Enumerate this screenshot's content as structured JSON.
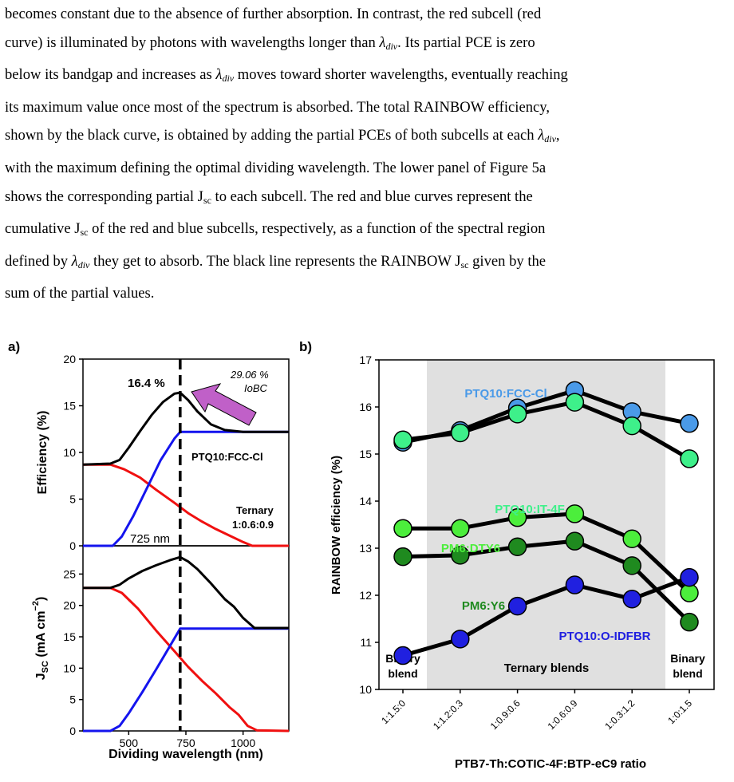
{
  "text": {
    "l1": "becomes constant due to the absence of further absorption. In contrast, the red subcell (red",
    "l2a": "curve) is illuminated by photons with wavelengths longer than ",
    "l2b": ". Its partial PCE is zero",
    "l3a": "below its bandgap and increases as ",
    "l3b": " moves toward shorter wavelengths, eventually reaching",
    "l4": "its maximum value once most of the spectrum is absorbed. The total RAINBOW efficiency,",
    "l5a": "shown by the black curve, is obtained by adding the partial PCEs of both subcells at each ",
    "l5b": ",",
    "l6": "with the maximum defining the optimal dividing wavelength. The lower panel of Figure 5a",
    "l7a": "shows the corresponding partial J",
    "l7b": " to each subcell. The red and blue curves represent the",
    "l8a": "cumulative J",
    "l8b": " of the red and blue subcells, respectively, as a function of the spectral region",
    "l9a": "defined by ",
    "l9b": " they get to absorb. The black line represents the RAINBOW J",
    "l9c": " given by the",
    "l10": "sum of the partial values.",
    "lam": "λ",
    "div_sub": "div",
    "sc_sub": "sc"
  },
  "figure_a": {
    "panel_label": "a)",
    "top": {
      "ylabel": "Efficiency (%)",
      "yticks": [
        "0",
        "5",
        "10",
        "15",
        "20"
      ],
      "ylim": [
        0,
        20
      ],
      "peak_label": "16.4 %",
      "iobc_line1": "29.06 %",
      "iobc_line2": "IoBC",
      "material_label": "PTQ10:FCC-Cl",
      "ternary_line1": "Ternary",
      "ternary_line2": "1:0.6:0.9",
      "divider_label": "725 nm",
      "divider_x": 725,
      "black": [
        [
          300,
          8.7
        ],
        [
          420,
          8.8
        ],
        [
          460,
          9.2
        ],
        [
          500,
          10.5
        ],
        [
          550,
          12.3
        ],
        [
          600,
          14
        ],
        [
          650,
          15.4
        ],
        [
          700,
          16.3
        ],
        [
          725,
          16.4
        ],
        [
          760,
          15.6
        ],
        [
          800,
          14.4
        ],
        [
          860,
          13
        ],
        [
          920,
          12.4
        ],
        [
          1000,
          12.2
        ],
        [
          1200,
          12.2
        ]
      ],
      "red": [
        [
          300,
          8.7
        ],
        [
          420,
          8.7
        ],
        [
          480,
          8.2
        ],
        [
          550,
          7.3
        ],
        [
          620,
          6
        ],
        [
          700,
          4.6
        ],
        [
          760,
          3.5
        ],
        [
          820,
          2.6
        ],
        [
          880,
          1.8
        ],
        [
          940,
          1.1
        ],
        [
          1000,
          0.4
        ],
        [
          1040,
          0
        ],
        [
          1200,
          0
        ]
      ],
      "blue": [
        [
          300,
          0
        ],
        [
          430,
          0
        ],
        [
          470,
          1
        ],
        [
          520,
          3.2
        ],
        [
          580,
          6.2
        ],
        [
          640,
          9.2
        ],
        [
          700,
          11.5
        ],
        [
          725,
          12.2
        ],
        [
          1200,
          12.2
        ]
      ]
    },
    "bottom": {
      "ylabel": "J",
      "ylabel_sub": "SC",
      "ylabel_unit": " (mA cm",
      "ylabel_exp": "−2",
      "ylabel_close": ")",
      "yticks": [
        "0",
        "5",
        "10",
        "15",
        "20",
        "25"
      ],
      "ylim": [
        0,
        29.5
      ],
      "xticks": [
        "500",
        "750",
        "1000"
      ],
      "xtick_values": [
        500,
        750,
        1000
      ],
      "xlim": [
        300,
        1200
      ],
      "xlabel": "Dividing wavelength (nm)",
      "black": [
        [
          300,
          22.8
        ],
        [
          420,
          22.8
        ],
        [
          460,
          23.3
        ],
        [
          500,
          24.3
        ],
        [
          560,
          25.5
        ],
        [
          620,
          26.4
        ],
        [
          680,
          27.2
        ],
        [
          725,
          27.7
        ],
        [
          760,
          27
        ],
        [
          800,
          25.8
        ],
        [
          860,
          23.5
        ],
        [
          920,
          21
        ],
        [
          960,
          19.8
        ],
        [
          1000,
          18
        ],
        [
          1050,
          16.4
        ],
        [
          1200,
          16.4
        ]
      ],
      "red": [
        [
          300,
          22.8
        ],
        [
          420,
          22.8
        ],
        [
          470,
          22
        ],
        [
          540,
          19.5
        ],
        [
          620,
          16
        ],
        [
          700,
          12.7
        ],
        [
          760,
          10.2
        ],
        [
          820,
          8
        ],
        [
          880,
          6
        ],
        [
          940,
          3.8
        ],
        [
          980,
          2.6
        ],
        [
          1020,
          0.8
        ],
        [
          1060,
          0.1
        ],
        [
          1200,
          0
        ]
      ],
      "blue": [
        [
          300,
          0
        ],
        [
          420,
          0
        ],
        [
          460,
          0.8
        ],
        [
          500,
          2.8
        ],
        [
          560,
          6.2
        ],
        [
          620,
          9.8
        ],
        [
          680,
          13.5
        ],
        [
          725,
          16.3
        ],
        [
          1200,
          16.3
        ]
      ]
    }
  },
  "figure_b": {
    "panel_label": "b)",
    "ylabel": "RAINBOW efficiency (%)",
    "yticks": [
      "10",
      "11",
      "12",
      "13",
      "14",
      "15",
      "16",
      "17"
    ],
    "ylim": [
      10,
      17
    ],
    "xlabel": "PTB7-Th:COTIC-4F:BTP-eC9 ratio",
    "categories": [
      "1:1.5:0",
      "1:1.2:0.3",
      "1:0.9:0.6",
      "1:0.6:0.9",
      "1:0.3:1.2",
      "1:0:1.5"
    ],
    "region_left": "Binary blend",
    "region_left_1": "Binary",
    "region_left_2": "blend",
    "region_mid": "Ternary blends",
    "region_right_1": "Binary",
    "region_right_2": "blend",
    "series": [
      {
        "name": "PTQ10:FCC-Cl",
        "values": [
          15.25,
          15.5,
          15.98,
          16.35,
          15.9,
          15.65
        ],
        "color": "#4a9ae8"
      },
      {
        "name": "PTQ10:IT-4F",
        "values": [
          15.3,
          15.45,
          15.85,
          16.1,
          15.6,
          14.9
        ],
        "color": "#3ef08a"
      },
      {
        "name": "PM6:DTY6",
        "values": [
          13.42,
          13.42,
          13.65,
          13.73,
          13.2,
          12.05
        ],
        "color": "#4cee3c"
      },
      {
        "name": "PM6:Y6",
        "values": [
          12.82,
          12.85,
          13.03,
          13.15,
          12.63,
          11.43
        ],
        "color": "#1f8a1f"
      },
      {
        "name": "PTQ10:O-IDFBR",
        "values": [
          10.72,
          11.07,
          11.77,
          12.22,
          11.92,
          12.38
        ],
        "color": "#2020e0"
      }
    ]
  },
  "colors": {
    "red": "#f01010",
    "blue": "#1414ee",
    "black": "#000000",
    "arrow": "#c060c8",
    "shade": "#e0e0e0"
  }
}
